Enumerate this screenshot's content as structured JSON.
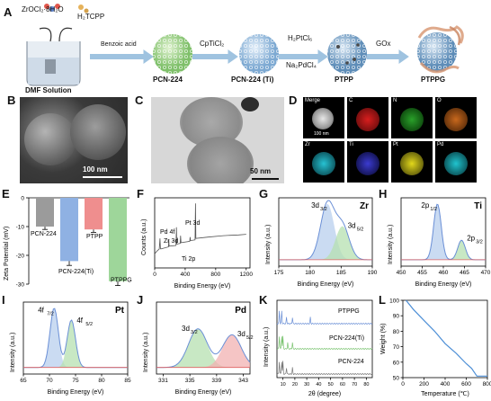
{
  "panels": [
    "A",
    "B",
    "C",
    "D",
    "E",
    "F",
    "G",
    "H",
    "I",
    "J",
    "K",
    "L"
  ],
  "schemeA": {
    "reagents": [
      "ZrOCl₂·8H₂O",
      "H₂TCPP"
    ],
    "solvent": "DMF Solution",
    "arrows": [
      "Benzoic acid",
      "CpTiCl₂",
      "H₂PtCl₆",
      "Na₂PdCl₄",
      "GOx"
    ],
    "products": [
      "PCN-224",
      "PCN-224 (Ti)",
      "PTPP",
      "PTPPG"
    ],
    "colors": {
      "pcn": "#a7d68f",
      "ti": "#a9cbe6",
      "ptpp": "#8eb6d6",
      "gox": "#e7b89a"
    }
  },
  "panelB": {
    "scale": "100 nm"
  },
  "panelC": {
    "scale": "50 nm"
  },
  "panelD": {
    "maps": [
      {
        "label": "Merge",
        "color": "#ffffff"
      },
      {
        "label": "C",
        "color": "#d81e1e"
      },
      {
        "label": "N",
        "color": "#2aa12a"
      },
      {
        "label": "O",
        "color": "#c8681d"
      },
      {
        "label": "Zr",
        "color": "#27c2d3"
      },
      {
        "label": "Ti",
        "color": "#3b3bd0"
      },
      {
        "label": "Pt",
        "color": "#e2d81b"
      },
      {
        "label": "Pd",
        "color": "#20c4cf"
      }
    ],
    "scale": "100 nm"
  },
  "panelE": {
    "ylabel": "Zeta Potential (mV)",
    "chart_data": {
      "type": "bar",
      "categories": [
        "PCN-224",
        "PCN-224(Ti)",
        "PTPP",
        "PTPPG"
      ],
      "values": [
        -10,
        -22,
        -11,
        -29
      ],
      "errors": [
        1,
        1.5,
        1,
        1.5
      ],
      "colors": [
        "#9b9b9b",
        "#8fb1e3",
        "#ef8e8e",
        "#9ed69a"
      ],
      "ylim": [
        -30,
        0
      ],
      "yticks": [
        "0",
        "-10",
        "-20",
        "-30"
      ]
    }
  },
  "panelF": {
    "xlabel": "Binding Energy (eV)",
    "ylabel": "Counts (a.u.)",
    "xticks": [
      "0",
      "400",
      "800",
      "1200"
    ],
    "annotations": [
      "Pd 4f",
      "Zr 3d",
      "Pt 3d",
      "Ti 2p"
    ],
    "chart_data": {
      "type": "line",
      "x": [
        0,
        30,
        60,
        70,
        75,
        80,
        180,
        185,
        190,
        280,
        285,
        290,
        335,
        340,
        345,
        460,
        465,
        470,
        530,
        535,
        540,
        700,
        900,
        1100,
        1200
      ],
      "y": [
        20,
        24,
        27,
        42,
        28,
        27,
        30,
        40,
        31,
        32,
        58,
        34,
        35,
        46,
        36,
        38,
        44,
        39,
        40,
        92,
        42,
        44,
        46,
        47,
        48
      ]
    }
  },
  "panelG": {
    "element": "Zr",
    "xlabel": "Binding Energy (eV)",
    "ylabel": "Intensity (a.u.)",
    "xticks": [
      "175",
      "180",
      "185",
      "190"
    ],
    "peaks": [
      {
        "name": "3d",
        "sub": "3/2"
      },
      {
        "name": "3d",
        "sub": "5/2"
      }
    ],
    "chart_data": {
      "type": "line",
      "x_range": [
        175,
        190
      ],
      "peak_centers": [
        182.8,
        185.2
      ],
      "peak_heights": [
        1.0,
        0.6
      ]
    }
  },
  "panelH": {
    "element": "Ti",
    "xlabel": "Binding Energy (eV)",
    "ylabel": "Intensity (a.u.)",
    "xticks": [
      "450",
      "455",
      "460",
      "465",
      "470"
    ],
    "peaks": [
      {
        "name": "2p",
        "sub": "1/2"
      },
      {
        "name": "2p",
        "sub": "3/2"
      }
    ],
    "chart_data": {
      "type": "line",
      "x_range": [
        450,
        470
      ],
      "peak_centers": [
        458.6,
        464.3
      ],
      "peak_heights": [
        1.0,
        0.35
      ]
    }
  },
  "panelI": {
    "element": "Pt",
    "xlabel": "Binding Energy (eV)",
    "ylabel": "Intensity (a.u.)",
    "xticks": [
      "65",
      "70",
      "75",
      "80",
      "85"
    ],
    "peaks": [
      {
        "name": "4f",
        "sub": "7/2"
      },
      {
        "name": "4f",
        "sub": "5/2"
      }
    ],
    "chart_data": {
      "type": "line",
      "x_range": [
        65,
        85
      ],
      "peak_centers": [
        70.9,
        74.2
      ],
      "peak_heights": [
        1.0,
        0.8
      ]
    }
  },
  "panelJ": {
    "element": "Pd",
    "xlabel": "Binding Energy (eV)",
    "ylabel": "Intensity (a.u.)",
    "xticks": [
      "331",
      "335",
      "339",
      "343"
    ],
    "peaks": [
      {
        "name": "3d",
        "sub": "3/2"
      },
      {
        "name": "3d",
        "sub": "5/2"
      }
    ],
    "chart_data": {
      "type": "line",
      "x_range": [
        330,
        344
      ],
      "peak_centers": [
        336.2,
        341.3
      ],
      "peak_heights": [
        0.65,
        0.55
      ]
    }
  },
  "panelK": {
    "xlabel": "2θ (degree)",
    "ylabel": "Intensity (a.u.)",
    "xticks": [
      "10",
      "20",
      "30",
      "40",
      "50",
      "60",
      "70",
      "80"
    ],
    "series": [
      "PTPPG",
      "PCN-224(Ti)",
      "PCN-224"
    ],
    "colors": [
      "#6a8fd6",
      "#79c36f",
      "#777777"
    ]
  },
  "panelL": {
    "xlabel": "Temperature (℃)",
    "ylabel": "Weight (%)",
    "xticks": [
      "0",
      "200",
      "400",
      "600",
      "800"
    ],
    "yticks": [
      "100",
      "90",
      "80",
      "70",
      "60",
      "50"
    ],
    "chart_data": {
      "type": "line",
      "x": [
        30,
        100,
        200,
        300,
        400,
        500,
        600,
        650,
        700,
        800
      ],
      "y": [
        100,
        94,
        87,
        80,
        72,
        66,
        59,
        56,
        51,
        51
      ],
      "ylim": [
        50,
        100
      ],
      "xlim": [
        0,
        800
      ]
    }
  }
}
